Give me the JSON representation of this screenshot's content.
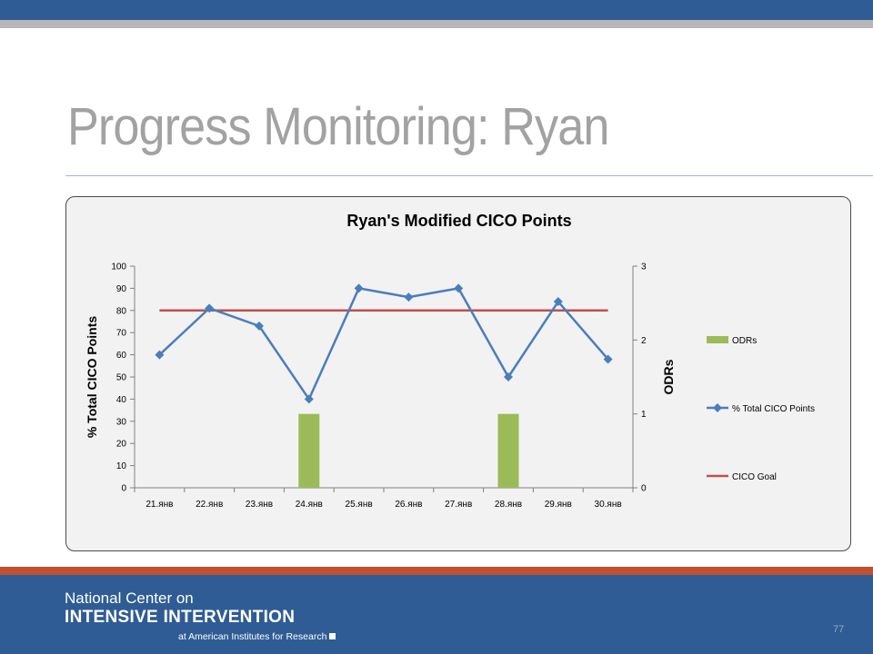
{
  "slide": {
    "title": "Progress Monitoring: Ryan",
    "page_number": "77"
  },
  "footer": {
    "line1": "National Center on",
    "line2": "INTENSIVE INTERVENTION",
    "line3": "at American Institutes for Research"
  },
  "colors": {
    "header_bar": "#2f5c94",
    "accent_stripe": "#c0502f",
    "points_series": "#4a7ebb",
    "goal_series": "#c0504d",
    "odr_series": "#9bbb59"
  },
  "chart_data": {
    "type": "line",
    "title": "Ryan's Modified CICO Points",
    "ylabel": "% Total CICO Points",
    "y2label": "ODRs",
    "categories": [
      "21.янв",
      "22.янв",
      "23.янв",
      "24.янв",
      "25.янв",
      "26.янв",
      "27.янв",
      "28.янв",
      "29.янв",
      "30.янв"
    ],
    "ylim": [
      0,
      100
    ],
    "yticks": [
      "0",
      "10",
      "20",
      "30",
      "40",
      "50",
      "60",
      "70",
      "80",
      "90",
      "100"
    ],
    "y2lim": [
      0,
      3
    ],
    "y2ticks": [
      "0",
      "1",
      "2",
      "3"
    ],
    "legend_position": "right",
    "grid": false,
    "series": [
      {
        "name": "ODRs",
        "type": "bar",
        "axis": "right",
        "values": [
          0,
          0,
          0,
          1,
          0,
          0,
          0,
          1,
          0,
          0
        ]
      },
      {
        "name": "% Total CICO Points",
        "type": "line",
        "marker": "diamond",
        "axis": "left",
        "values": [
          60,
          81,
          73,
          40,
          90,
          86,
          90,
          50,
          84,
          58
        ]
      },
      {
        "name": "CICO Goal",
        "type": "line",
        "axis": "left",
        "values": [
          80,
          80,
          80,
          80,
          80,
          80,
          80,
          80,
          80,
          80
        ]
      }
    ]
  }
}
